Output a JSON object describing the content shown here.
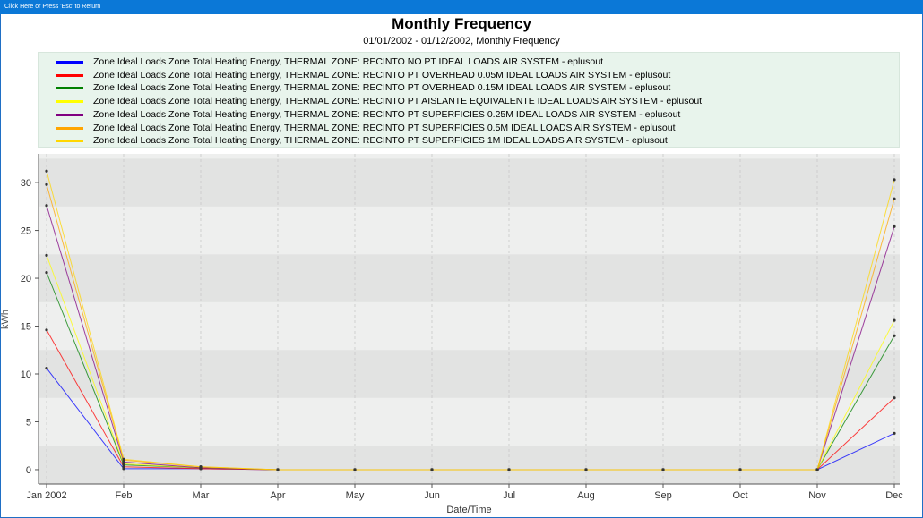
{
  "window": {
    "return_hint": "Click Here or Press 'Esc' to Return"
  },
  "chart_data": {
    "type": "line",
    "title": "Monthly Frequency",
    "subtitle": "01/01/2002 - 01/12/2002, Monthly Frequency",
    "xlabel": "Date/Time",
    "ylabel": "kWh",
    "categories": [
      "Jan 2002",
      "Feb",
      "Mar",
      "Apr",
      "May",
      "Jun",
      "Jul",
      "Aug",
      "Sep",
      "Oct",
      "Nov",
      "Dec"
    ],
    "ylim": [
      -1.5,
      33
    ],
    "yticks": [
      0,
      5,
      10,
      15,
      20,
      25,
      30
    ],
    "grid": true,
    "legend_position": "top",
    "series": [
      {
        "name": "Zone Ideal Loads Zone Total Heating Energy, THERMAL ZONE: RECINTO NO PT IDEAL LOADS AIR SYSTEM - eplusout",
        "color": "#0000ff",
        "values": [
          10.6,
          0.1,
          0.1,
          0,
          0,
          0,
          0,
          0,
          0,
          0,
          0,
          3.8
        ]
      },
      {
        "name": "Zone Ideal Loads Zone Total Heating Energy, THERMAL ZONE: RECINTO PT OVERHEAD 0.05M IDEAL LOADS AIR SYSTEM - eplusout",
        "color": "#ff0000",
        "values": [
          14.6,
          0.3,
          0.1,
          0,
          0,
          0,
          0,
          0,
          0,
          0,
          0,
          7.5
        ]
      },
      {
        "name": "Zone Ideal Loads Zone Total Heating Energy, THERMAL ZONE: RECINTO PT OVERHEAD 0.15M IDEAL LOADS AIR SYSTEM - eplusout",
        "color": "#008000",
        "values": [
          20.6,
          0.5,
          0.2,
          0,
          0,
          0,
          0,
          0,
          0,
          0,
          0,
          14.0
        ]
      },
      {
        "name": "Zone Ideal Loads Zone Total Heating Energy, THERMAL ZONE: RECINTO PT AISLANTE EQUIVALENTE IDEAL LOADS AIR SYSTEM - eplusout",
        "color": "#ffff00",
        "values": [
          22.4,
          0.6,
          0.2,
          0,
          0,
          0,
          0,
          0,
          0,
          0,
          0,
          15.6
        ]
      },
      {
        "name": "Zone Ideal Loads Zone Total Heating Energy, THERMAL ZONE: RECINTO PT SUPERFICIES 0.25M IDEAL LOADS AIR SYSTEM - eplusout",
        "color": "#800080",
        "values": [
          27.6,
          0.8,
          0.2,
          0,
          0,
          0,
          0,
          0,
          0,
          0,
          0,
          25.4
        ]
      },
      {
        "name": "Zone Ideal Loads Zone Total Heating Energy, THERMAL ZONE: RECINTO PT SUPERFICIES 0.5M IDEAL LOADS AIR SYSTEM - eplusout",
        "color": "#ffa500",
        "values": [
          29.8,
          1.0,
          0.3,
          0,
          0,
          0,
          0,
          0,
          0,
          0,
          0,
          28.3
        ]
      },
      {
        "name": "Zone Ideal Loads Zone Total Heating Energy, THERMAL ZONE: RECINTO PT SUPERFICIES 1M IDEAL LOADS AIR SYSTEM - eplusout",
        "color": "#ffd700",
        "values": [
          31.2,
          1.1,
          0.3,
          0,
          0,
          0,
          0,
          0,
          0,
          0,
          0,
          30.3
        ]
      }
    ]
  }
}
